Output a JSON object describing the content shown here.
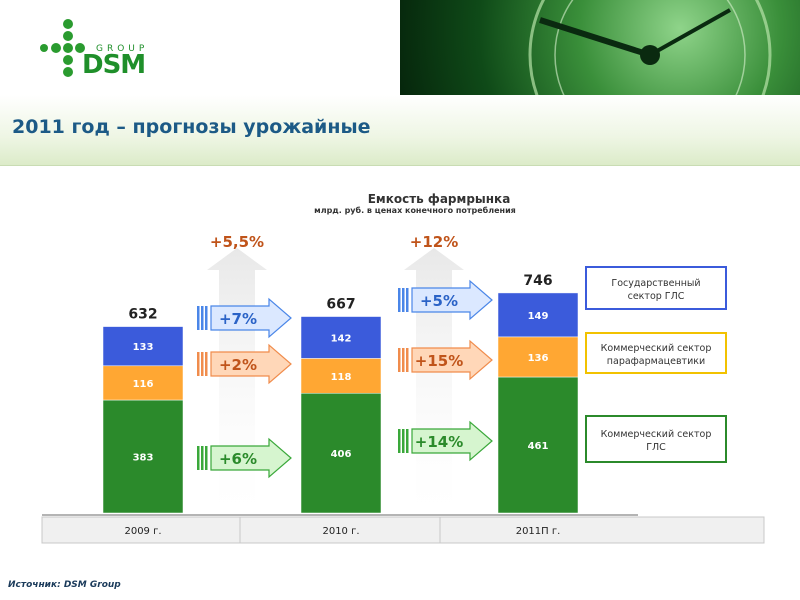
{
  "page": {
    "title": "2011 год – прогнозы урожайные",
    "source_label": "Источник:",
    "source_value": "DSM Group",
    "logo_text": "DSM",
    "logo_group": "GROUP"
  },
  "colors": {
    "state": "#3b5bdb",
    "parapharm": "#ffa733",
    "commercial": "#2b8a2b",
    "growth_arrow": "#c0541a",
    "title": "#1c5a86"
  },
  "chart_data": {
    "type": "bar",
    "stacked": true,
    "title": "Емкость фармрынка",
    "subtitle": "млрд. руб. в ценах конечного потребления",
    "categories": [
      "2009 г.",
      "2010 г.",
      "2011П г."
    ],
    "totals": [
      632,
      667,
      746
    ],
    "series": [
      {
        "name": "Коммерческий сектор ГЛС",
        "values": [
          383,
          406,
          461
        ]
      },
      {
        "name": "Коммерческий сектор парафармацевтики",
        "values": [
          116,
          118,
          136
        ]
      },
      {
        "name": "Государственный сектор ГЛС",
        "values": [
          133,
          142,
          149
        ]
      }
    ],
    "growth_total": [
      "+5,5%",
      "+12%"
    ],
    "growth_segments": [
      {
        "state": "+7%",
        "parapharm": "+2%",
        "commercial": "+6%"
      },
      {
        "state": "+5%",
        "parapharm": "+15%",
        "commercial": "+14%"
      }
    ],
    "legend": [
      "Государственный сектор ГЛС",
      "Коммерческий сектор парафармацевтики",
      "Коммерческий сектор ГЛС"
    ],
    "ylim": [
      0,
      800
    ]
  }
}
